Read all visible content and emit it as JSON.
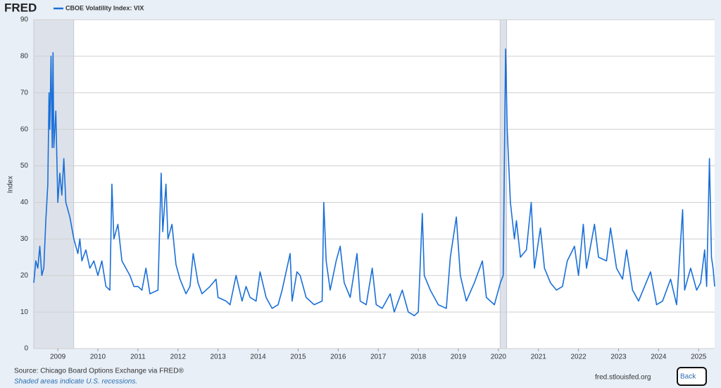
{
  "chart_data": {
    "type": "line",
    "logo": "FRED",
    "ylabel": "Index",
    "source": "Source: Chicago Board Options Exchange via FRED®",
    "note": "Shaded areas indicate U.S. recessions.",
    "site": "fred.stlouisfed.org",
    "back_button": "Back",
    "xlim": [
      2008.4,
      2025.4
    ],
    "ylim": [
      0,
      90
    ],
    "xticks": [
      2009,
      2010,
      2011,
      2012,
      2013,
      2014,
      2015,
      2016,
      2017,
      2018,
      2019,
      2020,
      2021,
      2022,
      2023,
      2024,
      2025
    ],
    "yticks": [
      0,
      10,
      20,
      30,
      40,
      50,
      60,
      70,
      80,
      90
    ],
    "grid": true,
    "recessions": [
      [
        2008.4,
        2009.4
      ],
      [
        2020.04,
        2020.21
      ]
    ],
    "x": [
      2008.4,
      2008.45,
      2008.5,
      2008.55,
      2008.6,
      2008.65,
      2008.7,
      2008.75,
      2008.78,
      2008.8,
      2008.83,
      2008.86,
      2008.88,
      2008.9,
      2008.95,
      2009.0,
      2009.05,
      2009.1,
      2009.15,
      2009.2,
      2009.3,
      2009.4,
      2009.5,
      2009.55,
      2009.6,
      2009.7,
      2009.8,
      2009.9,
      2010.0,
      2010.1,
      2010.2,
      2010.3,
      2010.35,
      2010.4,
      2010.5,
      2010.6,
      2010.7,
      2010.8,
      2010.9,
      2011.0,
      2011.1,
      2011.2,
      2011.3,
      2011.5,
      2011.58,
      2011.62,
      2011.7,
      2011.75,
      2011.85,
      2011.95,
      2012.05,
      2012.2,
      2012.3,
      2012.38,
      2012.5,
      2012.6,
      2012.8,
      2012.95,
      2013.0,
      2013.2,
      2013.3,
      2013.45,
      2013.6,
      2013.7,
      2013.8,
      2013.95,
      2014.05,
      2014.2,
      2014.35,
      2014.5,
      2014.6,
      2014.8,
      2014.85,
      2014.97,
      2015.05,
      2015.2,
      2015.4,
      2015.6,
      2015.64,
      2015.7,
      2015.8,
      2015.95,
      2016.05,
      2016.15,
      2016.3,
      2016.47,
      2016.55,
      2016.7,
      2016.85,
      2016.95,
      2017.1,
      2017.3,
      2017.4,
      2017.6,
      2017.75,
      2017.9,
      2018.0,
      2018.1,
      2018.15,
      2018.3,
      2018.5,
      2018.7,
      2018.8,
      2018.95,
      2019.05,
      2019.2,
      2019.4,
      2019.6,
      2019.7,
      2019.9,
      2020.05,
      2020.12,
      2020.18,
      2020.22,
      2020.3,
      2020.4,
      2020.45,
      2020.55,
      2020.7,
      2020.82,
      2020.9,
      2021.05,
      2021.15,
      2021.3,
      2021.45,
      2021.6,
      2021.72,
      2021.9,
      2022.0,
      2022.12,
      2022.2,
      2022.4,
      2022.5,
      2022.7,
      2022.8,
      2022.95,
      2023.1,
      2023.2,
      2023.35,
      2023.5,
      2023.65,
      2023.8,
      2023.95,
      2024.1,
      2024.3,
      2024.45,
      2024.6,
      2024.65,
      2024.8,
      2024.95,
      2025.05,
      2025.15,
      2025.2,
      2025.27,
      2025.32,
      2025.36,
      2025.4
    ],
    "series": [
      {
        "name": "CBOE Volatility Index: VIX",
        "color": "#1a6fd8",
        "values": [
          18,
          24,
          22,
          28,
          20,
          22,
          35,
          45,
          70,
          60,
          80,
          55,
          81,
          55,
          65,
          40,
          48,
          42,
          52,
          40,
          36,
          30,
          26,
          30,
          24,
          27,
          22,
          24,
          20,
          24,
          17,
          16,
          45,
          30,
          34,
          24,
          22,
          20,
          17,
          17,
          16,
          22,
          15,
          16,
          48,
          32,
          45,
          30,
          34,
          23,
          19,
          15,
          17,
          26,
          18,
          15,
          17,
          19,
          14,
          13,
          12,
          20,
          13,
          17,
          14,
          13,
          21,
          14,
          11,
          12,
          16,
          26,
          13,
          21,
          20,
          14,
          12,
          13,
          40,
          24,
          16,
          24,
          28,
          18,
          14,
          26,
          13,
          12,
          22,
          12,
          11,
          15,
          10,
          16,
          10,
          9,
          10,
          37,
          20,
          16,
          12,
          11,
          25,
          36,
          20,
          13,
          18,
          24,
          14,
          12,
          18,
          20,
          82,
          60,
          40,
          30,
          35,
          25,
          27,
          40,
          22,
          33,
          22,
          18,
          16,
          17,
          24,
          28,
          20,
          34,
          22,
          34,
          25,
          24,
          33,
          22,
          19,
          27,
          16,
          13,
          17,
          21,
          12,
          13,
          19,
          12,
          38,
          16,
          22,
          16,
          18,
          27,
          17,
          52,
          25,
          22,
          17
        ]
      }
    ]
  }
}
